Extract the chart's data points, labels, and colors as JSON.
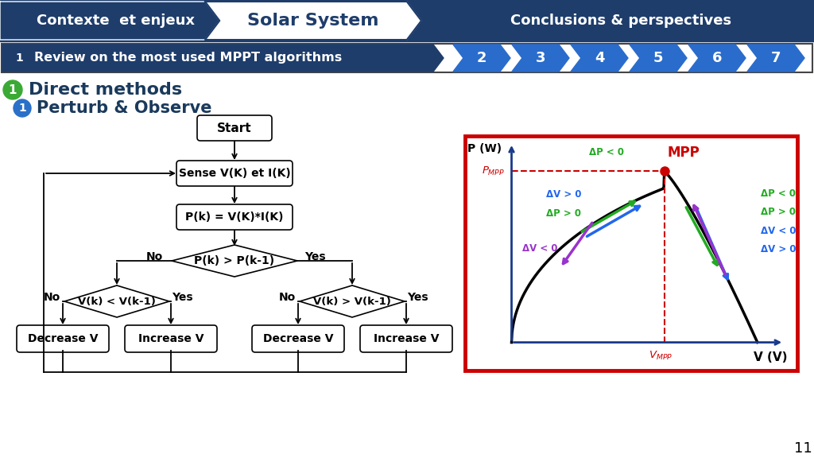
{
  "bg_color": "#ffffff",
  "slide_number": "11",
  "nav_items": [
    "Contexte  et enjeux",
    "Solar System",
    "Conclusions & perspectives"
  ],
  "sub_nav_label": "Review on the most used MPPT algorithms",
  "sub_nav_numbers": [
    "2",
    "3",
    "4",
    "5",
    "6",
    "7"
  ],
  "section1_title": "Direct methods",
  "section1_sub": "Perturb & Observe",
  "header_dark_color": "#1e3d6b",
  "header_mid_color": "#2a5fa5",
  "header_active_color": "#ffffff",
  "header_active_text": "#1e3d6b",
  "subnav_dark_color": "#1e3d6b",
  "subnav_num_color": "#2a6ccc",
  "green_circle_color": "#3aaa35",
  "blue_circle_color": "#2a70c8",
  "curve_border_color": "#cc0000",
  "mpp_dot_color": "#cc0000",
  "arrow_green": "#22aa22",
  "arrow_blue": "#2266ee",
  "arrow_purple": "#9933cc",
  "axis_color": "#1a3a8a"
}
